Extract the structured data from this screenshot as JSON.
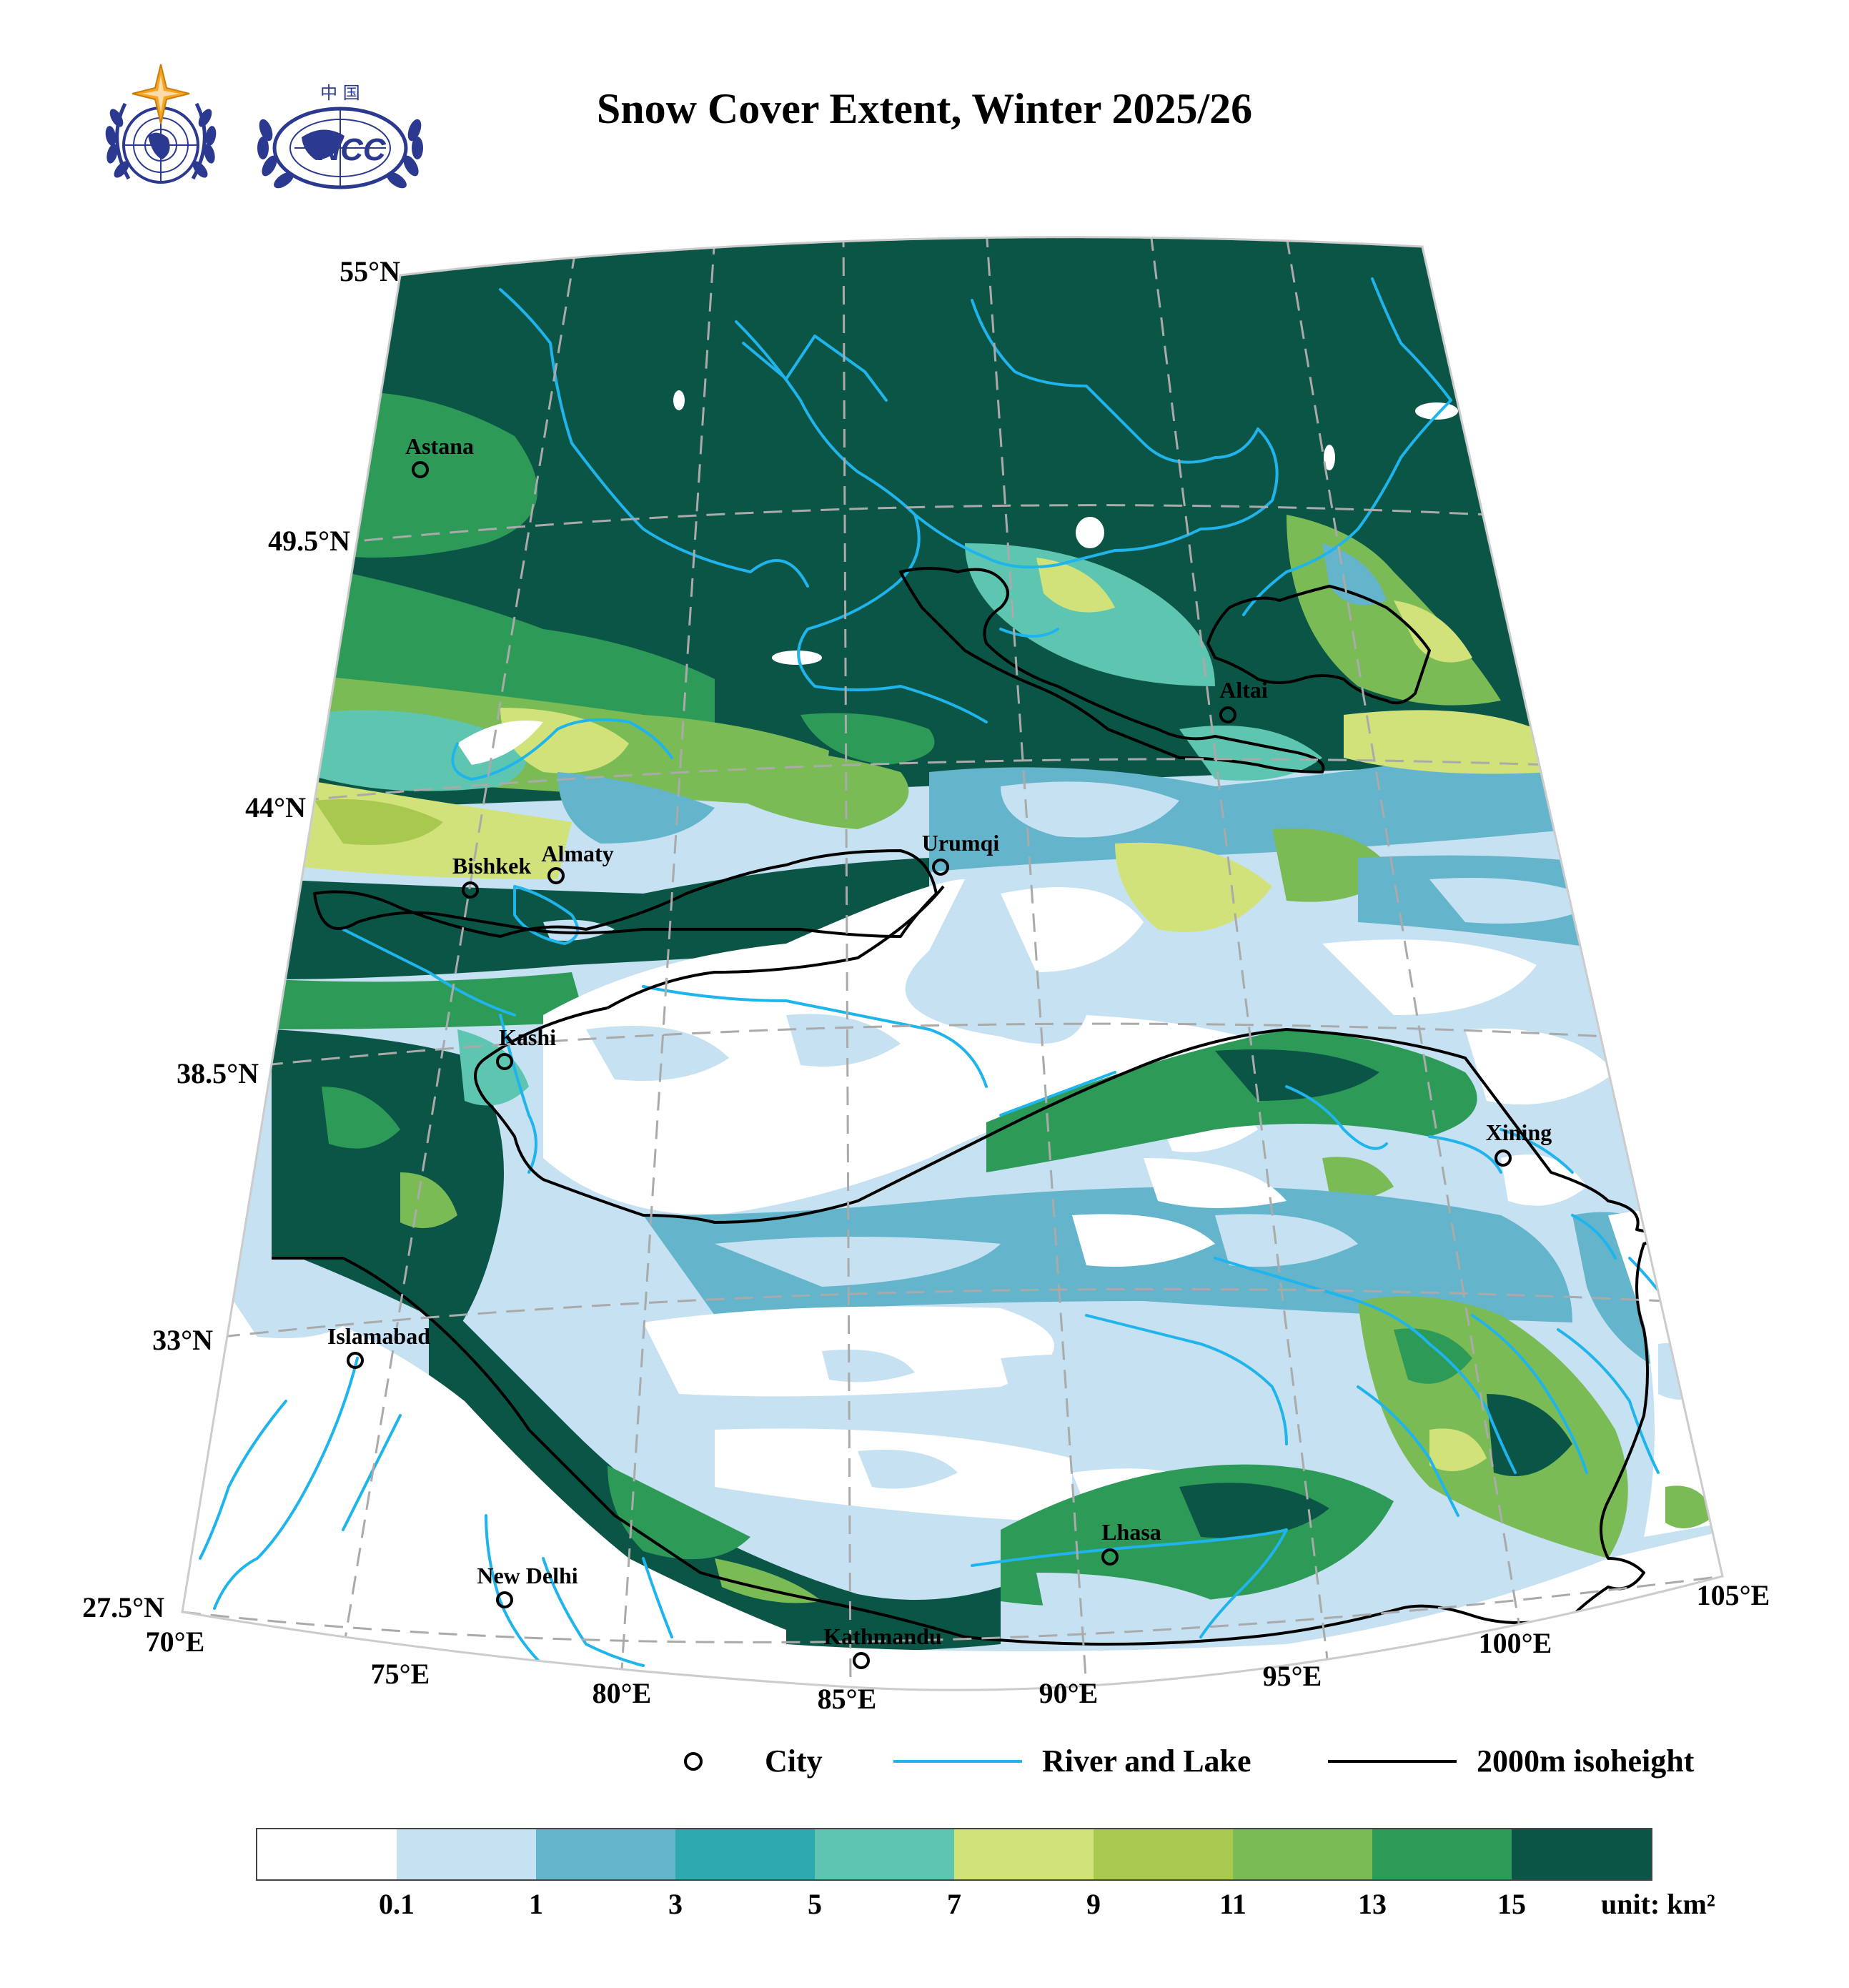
{
  "title": "Snow Cover Extent, Winter 2025/26",
  "logos": [
    {
      "name": "wmo-logo",
      "icon": "wmo-emblem-icon"
    },
    {
      "name": "ncc-logo",
      "icon": "ncc-emblem-icon",
      "text_top": "中 国",
      "text_mid": "NCC"
    }
  ],
  "map": {
    "lat_labels": [
      "55°N",
      "49.5°N",
      "44°N",
      "38.5°N",
      "33°N",
      "27.5°N"
    ],
    "lon_labels": [
      "70°E",
      "75°E",
      "80°E",
      "85°E",
      "90°E",
      "95°E",
      "100°E",
      "105°E"
    ],
    "cities": [
      "Astana",
      "Almaty",
      "Bishkek",
      "Urumqi",
      "Altai",
      "Kashi",
      "Xining",
      "Islamabad",
      "Lhasa",
      "New Delhi",
      "Kathmandu"
    ]
  },
  "legend": {
    "city": "City",
    "river": "River and Lake",
    "isoheight": "2000m isoheight",
    "river_color": "#1fb4ec",
    "isoheight_color": "#000000"
  },
  "colorbar": {
    "colors": [
      "#ffffff",
      "#c6e1f2",
      "#64b5cc",
      "#2ea9b0",
      "#5ec6b0",
      "#d2e27a",
      "#a8c850",
      "#7abb56",
      "#2e9a58",
      "#0b5546"
    ],
    "ticks": [
      "0.1",
      "1",
      "3",
      "5",
      "7",
      "9",
      "11",
      "13",
      "15"
    ],
    "unit": "unit: km²"
  }
}
